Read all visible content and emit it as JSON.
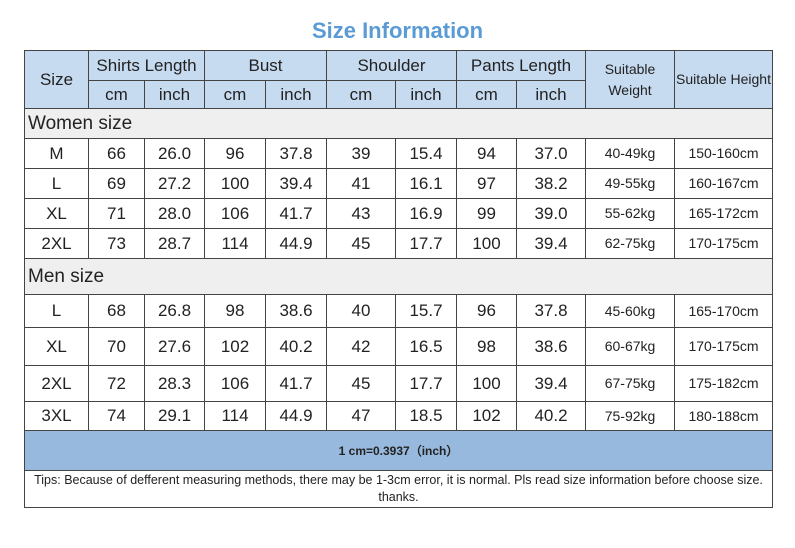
{
  "title": "Size Information",
  "table": {
    "header": {
      "size": "Size",
      "groups": [
        {
          "name": "Shirts Length",
          "units": [
            "cm",
            "inch"
          ]
        },
        {
          "name": "Bust",
          "units": [
            "cm",
            "inch"
          ]
        },
        {
          "name": "Shoulder",
          "units": [
            "cm",
            "inch"
          ]
        },
        {
          "name": "Pants Length",
          "units": [
            "cm",
            "inch"
          ]
        }
      ],
      "weight": "Suitable Weight",
      "height": "Suitable Height"
    },
    "sections": [
      {
        "name": "Women size",
        "rows": [
          [
            "M",
            "66",
            "26.0",
            "96",
            "37.8",
            "39",
            "15.4",
            "94",
            "37.0",
            "40-49kg",
            "150-160cm"
          ],
          [
            "L",
            "69",
            "27.2",
            "100",
            "39.4",
            "41",
            "16.1",
            "97",
            "38.2",
            "49-55kg",
            "160-167cm"
          ],
          [
            "XL",
            "71",
            "28.0",
            "106",
            "41.7",
            "43",
            "16.9",
            "99",
            "39.0",
            "55-62kg",
            "165-172cm"
          ],
          [
            "2XL",
            "73",
            "28.7",
            "114",
            "44.9",
            "45",
            "17.7",
            "100",
            "39.4",
            "62-75kg",
            "170-175cm"
          ]
        ]
      },
      {
        "name": "Men size",
        "rows": [
          [
            "L",
            "68",
            "26.8",
            "98",
            "38.6",
            "40",
            "15.7",
            "96",
            "37.8",
            "45-60kg",
            "165-170cm"
          ],
          [
            "XL",
            "70",
            "27.6",
            "102",
            "40.2",
            "42",
            "16.5",
            "98",
            "38.6",
            "60-67kg",
            "170-175cm"
          ],
          [
            "2XL",
            "72",
            "28.3",
            "106",
            "41.7",
            "45",
            "17.7",
            "100",
            "39.4",
            "67-75kg",
            "175-182cm"
          ],
          [
            "3XL",
            "74",
            "29.1",
            "114",
            "44.9",
            "47",
            "18.5",
            "102",
            "40.2",
            "75-92kg",
            "180-188cm"
          ]
        ]
      }
    ],
    "conversion": "1 cm=0.3937（inch）",
    "tips": "Tips: Because of defferent measuring methods, there may be 1-3cm error, it is normal. Pls read size information before choose size. thanks."
  }
}
